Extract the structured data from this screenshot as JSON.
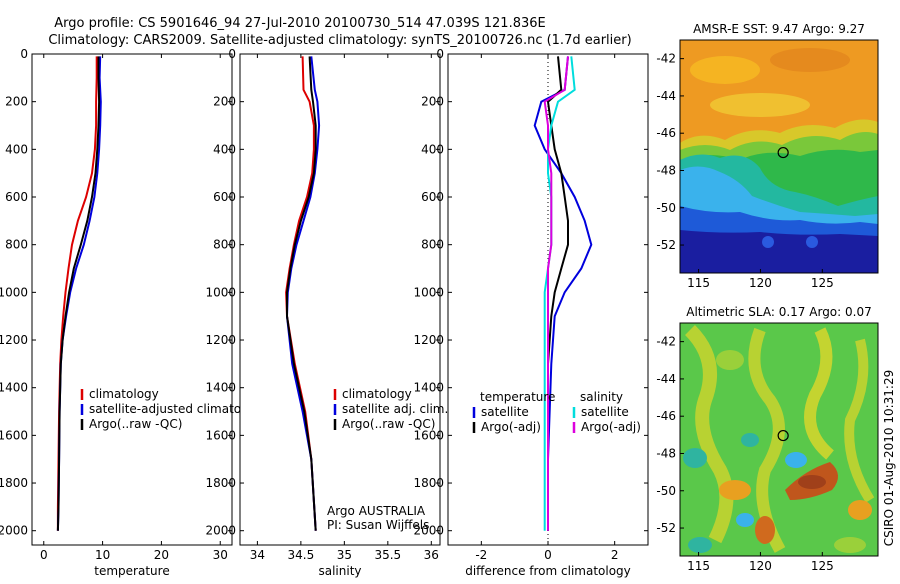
{
  "header": {
    "line1": "Argo profile: CS 5901646_94 27-Jul-2010 20100730_514 47.039S 121.836E",
    "line2": "Climatology: CARS2009. Satellite-adjusted climatology: synTS_20100726.nc (1.7d earlier)"
  },
  "side_note": "CSIRO 01-Aug-2010 10:31:29",
  "chart_data": [
    {
      "type": "line",
      "id": "temperature",
      "xlabel": "temperature",
      "ylabel": "",
      "xlim": [
        -2,
        32
      ],
      "ylim": [
        2060,
        0
      ],
      "xticks": [
        0,
        10,
        20,
        30
      ],
      "yticks": [
        0,
        200,
        400,
        600,
        800,
        1000,
        1200,
        1400,
        1600,
        1800,
        2000
      ],
      "legend": [
        "climatology",
        "satellite-adjusted climatology",
        "Argo(..raw -QC)"
      ],
      "series": [
        {
          "name": "climatology",
          "color": "#dd0000",
          "x": [
            9.0,
            9.0,
            8.9,
            8.9,
            8.7,
            8.2,
            7.2,
            5.8,
            4.8,
            4.2,
            3.7,
            3.3,
            3.0,
            2.8,
            2.6,
            2.5,
            2.4,
            2.4
          ],
          "y": [
            10,
            100,
            200,
            300,
            400,
            500,
            600,
            700,
            800,
            900,
            1000,
            1100,
            1200,
            1300,
            1500,
            1700,
            1900,
            2000
          ]
        },
        {
          "name": "satellite-adjusted climatology",
          "color": "#0000dd",
          "x": [
            9.6,
            9.5,
            9.7,
            9.6,
            9.4,
            9.1,
            8.6,
            7.8,
            6.8,
            5.5,
            4.5,
            3.8,
            3.2,
            2.9,
            2.7,
            2.6,
            2.5,
            2.4
          ],
          "y": [
            10,
            100,
            200,
            300,
            400,
            500,
            600,
            700,
            800,
            900,
            1000,
            1100,
            1200,
            1300,
            1500,
            1700,
            1900,
            2000
          ]
        },
        {
          "name": "Argo(..raw -QC)",
          "color": "#000000",
          "x": [
            9.3,
            9.3,
            9.4,
            9.3,
            9.1,
            8.8,
            8.2,
            7.4,
            6.3,
            5.1,
            4.3,
            3.7,
            3.2,
            2.9,
            2.7,
            2.6,
            2.5,
            2.4
          ],
          "y": [
            10,
            100,
            200,
            300,
            400,
            500,
            600,
            700,
            800,
            900,
            1000,
            1100,
            1200,
            1300,
            1500,
            1700,
            1900,
            2000
          ]
        }
      ]
    },
    {
      "type": "line",
      "id": "salinity",
      "xlabel": "salinity",
      "ylabel": "",
      "xlim": [
        33.8,
        36.1
      ],
      "ylim": [
        2060,
        0
      ],
      "xticks": [
        34,
        34.5,
        35,
        35.5,
        36
      ],
      "xtick_labels": [
        "34",
        "34.5",
        "35",
        "35.5",
        "36"
      ],
      "yticks": [
        0,
        200,
        400,
        600,
        800,
        1000,
        1200,
        1400,
        1600,
        1800,
        2000
      ],
      "legend": [
        "climatology",
        "satellite adj. clim.",
        "Argo(..raw -QC)"
      ],
      "annotation": [
        "Argo AUSTRALIA",
        "PI: Susan Wijffels"
      ],
      "series": [
        {
          "name": "climatology",
          "color": "#dd0000",
          "x": [
            34.52,
            34.53,
            34.6,
            34.65,
            34.65,
            34.63,
            34.57,
            34.48,
            34.42,
            34.37,
            34.33,
            34.34,
            34.43,
            34.55,
            34.62,
            34.67
          ],
          "y": [
            10,
            150,
            200,
            300,
            400,
            500,
            600,
            700,
            800,
            900,
            1000,
            1100,
            1300,
            1500,
            1700,
            2000
          ]
        },
        {
          "name": "satellite adj. clim.",
          "color": "#0000dd",
          "x": [
            34.62,
            34.66,
            34.69,
            34.71,
            34.69,
            34.66,
            34.61,
            34.53,
            34.45,
            34.39,
            34.35,
            34.34,
            34.4,
            34.52,
            34.62,
            34.67
          ],
          "y": [
            10,
            150,
            200,
            300,
            400,
            500,
            600,
            700,
            800,
            900,
            1000,
            1100,
            1300,
            1500,
            1700,
            2000
          ]
        },
        {
          "name": "Argo(..raw -QC)",
          "color": "#000000",
          "x": [
            34.6,
            34.62,
            34.64,
            34.67,
            34.67,
            34.65,
            34.59,
            34.5,
            34.43,
            34.38,
            34.34,
            34.34,
            34.42,
            34.54,
            34.62,
            34.67
          ],
          "y": [
            10,
            150,
            200,
            300,
            400,
            500,
            600,
            700,
            800,
            900,
            1000,
            1100,
            1300,
            1500,
            1700,
            2000
          ]
        }
      ]
    },
    {
      "type": "line",
      "id": "difference",
      "xlabel": "difference from climatology",
      "ylabel": "",
      "xlim": [
        -3,
        3
      ],
      "ylim": [
        2060,
        0
      ],
      "xticks": [
        -2,
        0,
        2
      ],
      "yticks": [
        0,
        200,
        400,
        600,
        800,
        1000,
        1200,
        1400,
        1600,
        1800,
        2000
      ],
      "legend_headers": [
        "temperature",
        "salinity"
      ],
      "legend": [
        "satellite",
        "Argo(-adj)",
        "satellite",
        "Argo(-adj)"
      ],
      "zero_line": true,
      "series": [
        {
          "name": "satellite",
          "group": "temperature",
          "color": "#0000dd",
          "x": [
            0.6,
            0.5,
            -0.2,
            -0.4,
            -0.1,
            0.4,
            0.8,
            1.1,
            1.3,
            1.0,
            0.5,
            0.2,
            0.1,
            0.0,
            0.0
          ],
          "y": [
            10,
            150,
            200,
            300,
            400,
            500,
            600,
            700,
            800,
            900,
            1000,
            1100,
            1300,
            1700,
            2000
          ]
        },
        {
          "name": "Argo(-adj)",
          "group": "temperature",
          "color": "#000000",
          "x": [
            0.3,
            0.4,
            0.0,
            0.1,
            0.2,
            0.4,
            0.5,
            0.6,
            0.6,
            0.4,
            0.2,
            0.1,
            0.0,
            0.0,
            0.0
          ],
          "y": [
            10,
            150,
            200,
            300,
            400,
            500,
            600,
            700,
            800,
            900,
            1000,
            1100,
            1300,
            1700,
            2000
          ]
        },
        {
          "name": "satellite",
          "group": "salinity",
          "color": "#00dddd",
          "x": [
            0.7,
            0.8,
            0.3,
            0.1,
            0.0,
            0.0,
            0.1,
            0.1,
            0.1,
            0.0,
            -0.1,
            -0.1,
            -0.1,
            -0.1,
            -0.1
          ],
          "y": [
            10,
            150,
            200,
            300,
            400,
            500,
            600,
            700,
            800,
            900,
            1000,
            1100,
            1300,
            1700,
            2000
          ]
        },
        {
          "name": "Argo(-adj)",
          "group": "salinity",
          "color": "#dd00dd",
          "x": [
            0.6,
            0.5,
            -0.1,
            0.0,
            0.0,
            0.1,
            0.1,
            0.1,
            0.1,
            0.0,
            0.0,
            0.0,
            0.0,
            0.0,
            0.0
          ],
          "y": [
            10,
            150,
            200,
            300,
            400,
            500,
            600,
            700,
            800,
            900,
            1000,
            1100,
            1300,
            1700,
            2000
          ]
        }
      ]
    },
    {
      "type": "heatmap",
      "id": "sst_map",
      "title": "AMSR-E SST: 9.47 Argo: 9.27",
      "xlim": [
        113.5,
        129.5
      ],
      "ylim": [
        -53.5,
        -41
      ],
      "xticks": [
        115,
        120,
        125
      ],
      "yticks": [
        -42,
        -44,
        -46,
        -48,
        -50,
        -52
      ],
      "marker": {
        "lon": 121.836,
        "lat": -47.039
      }
    },
    {
      "type": "heatmap",
      "id": "sla_map",
      "title": "Altimetric SLA: 0.17 Argo: 0.07",
      "xlim": [
        113.5,
        129.5
      ],
      "ylim": [
        -53.5,
        -41
      ],
      "xticks": [
        115,
        120,
        125
      ],
      "yticks": [
        -42,
        -44,
        -46,
        -48,
        -50,
        -52
      ],
      "marker": {
        "lon": 121.836,
        "lat": -47.039
      }
    }
  ]
}
